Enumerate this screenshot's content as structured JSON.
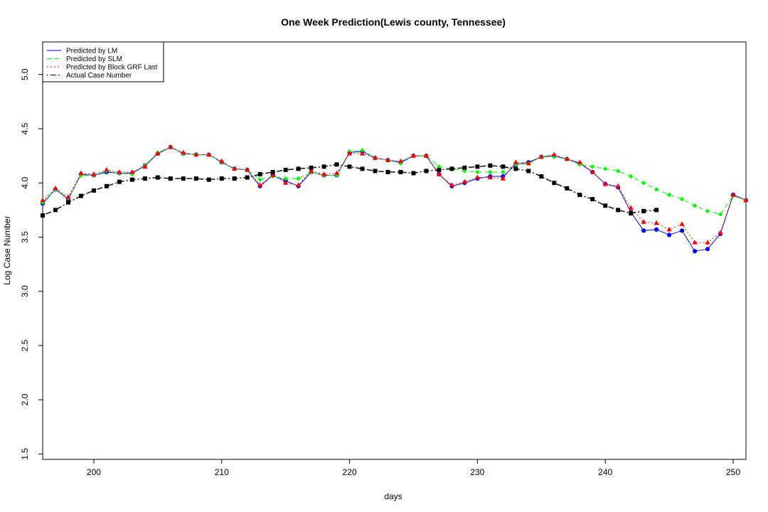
{
  "chart_data": {
    "type": "line",
    "title": "One Week Prediction(Lewis county, Tennessee)",
    "xlabel": "days",
    "ylabel": "Log Case Number",
    "xlim": [
      196,
      251
    ],
    "ylim": [
      1.45,
      5.3
    ],
    "x_ticks": [
      200,
      210,
      220,
      230,
      240,
      250
    ],
    "y_ticks": [
      1.5,
      2.0,
      2.5,
      3.0,
      3.5,
      4.0,
      4.5,
      5.0
    ],
    "x_tick_labels": [
      "200",
      "210",
      "220",
      "230",
      "240",
      "250"
    ],
    "y_tick_labels": [
      "1.5",
      "2.0",
      "2.5",
      "3.0",
      "3.5",
      "4.0",
      "4.5",
      "5.0"
    ],
    "grid": false,
    "legend_position": "top-left",
    "legend": [
      "Predicted by LM",
      "Predicted by SLM",
      "Predicted by Block GRF Last",
      "Actual Case Number"
    ],
    "series": [
      {
        "name": "Predicted by LM",
        "color": "#0000ff",
        "dash": "solid",
        "marker": "circle",
        "x": [
          196,
          197,
          198,
          199,
          200,
          201,
          202,
          203,
          204,
          205,
          206,
          207,
          208,
          209,
          210,
          211,
          212,
          213,
          214,
          215,
          216,
          217,
          218,
          219,
          220,
          221,
          222,
          223,
          224,
          225,
          226,
          227,
          228,
          229,
          230,
          231,
          232,
          233,
          234,
          235,
          236,
          237,
          238,
          239,
          240,
          241,
          242,
          243,
          244,
          245,
          246,
          247,
          248,
          249,
          250,
          251
        ],
        "values": [
          3.81,
          3.94,
          3.85,
          4.08,
          4.07,
          4.1,
          4.09,
          4.09,
          4.16,
          4.27,
          4.33,
          4.27,
          4.26,
          4.26,
          4.19,
          4.13,
          4.12,
          3.97,
          4.07,
          4.02,
          3.97,
          4.1,
          4.07,
          4.07,
          4.28,
          4.29,
          4.23,
          4.21,
          4.19,
          4.25,
          4.25,
          4.08,
          3.97,
          4.0,
          4.04,
          4.06,
          4.06,
          4.17,
          4.19,
          4.24,
          4.25,
          4.22,
          4.18,
          4.1,
          3.99,
          3.96,
          3.73,
          3.56,
          3.57,
          3.52,
          3.56,
          3.37,
          3.39,
          3.53,
          3.89,
          3.84
        ]
      },
      {
        "name": "Predicted by SLM",
        "color": "#00ff00",
        "dash": "dashed",
        "marker": "diamond",
        "x": [
          196,
          197,
          198,
          199,
          200,
          201,
          202,
          203,
          204,
          205,
          206,
          207,
          208,
          209,
          210,
          211,
          212,
          213,
          214,
          215,
          216,
          217,
          218,
          219,
          220,
          221,
          222,
          223,
          224,
          225,
          226,
          227,
          228,
          229,
          230,
          231,
          232,
          233,
          234,
          235,
          236,
          237,
          238,
          239,
          240,
          241,
          242,
          243,
          244,
          245,
          246,
          247,
          248,
          249,
          250,
          251
        ],
        "values": [
          3.82,
          3.94,
          3.86,
          4.07,
          4.07,
          4.11,
          4.09,
          4.08,
          4.16,
          4.28,
          4.33,
          4.27,
          4.26,
          4.26,
          4.19,
          4.13,
          4.12,
          4.03,
          4.06,
          4.04,
          4.04,
          4.1,
          4.07,
          4.07,
          4.29,
          4.3,
          4.23,
          4.21,
          4.18,
          4.25,
          4.25,
          4.15,
          4.13,
          4.11,
          4.1,
          4.1,
          4.1,
          4.17,
          4.18,
          4.24,
          4.24,
          4.22,
          4.17,
          4.15,
          4.13,
          4.11,
          4.06,
          4.0,
          3.94,
          3.89,
          3.85,
          3.79,
          3.74,
          3.71,
          3.88,
          3.84
        ]
      },
      {
        "name": "Predicted by Block GRF Last",
        "color": "#ff0000",
        "dash": "dotted",
        "marker": "triangle",
        "x": [
          196,
          197,
          198,
          199,
          200,
          201,
          202,
          203,
          204,
          205,
          206,
          207,
          208,
          209,
          210,
          211,
          212,
          213,
          214,
          215,
          216,
          217,
          218,
          219,
          220,
          221,
          222,
          223,
          224,
          225,
          226,
          227,
          228,
          229,
          230,
          231,
          232,
          233,
          234,
          235,
          236,
          237,
          238,
          239,
          240,
          241,
          242,
          243,
          244,
          245,
          246,
          247,
          248,
          249,
          250,
          251
        ],
        "values": [
          3.84,
          3.95,
          3.87,
          4.09,
          4.08,
          4.12,
          4.1,
          4.1,
          4.15,
          4.27,
          4.33,
          4.28,
          4.26,
          4.26,
          4.2,
          4.13,
          4.12,
          3.98,
          4.07,
          4.0,
          3.98,
          4.11,
          4.08,
          4.09,
          4.27,
          4.27,
          4.23,
          4.21,
          4.2,
          4.25,
          4.25,
          4.08,
          3.98,
          4.01,
          4.05,
          4.05,
          4.04,
          4.19,
          4.18,
          4.24,
          4.26,
          4.22,
          4.19,
          4.1,
          3.99,
          3.97,
          3.77,
          3.64,
          3.63,
          3.57,
          3.62,
          3.45,
          3.45,
          3.54,
          3.89,
          3.84
        ]
      },
      {
        "name": "Actual Case Number",
        "color": "#000000",
        "dash": "dotdash",
        "marker": "square",
        "x": [
          196,
          197,
          198,
          199,
          200,
          201,
          202,
          203,
          204,
          205,
          206,
          207,
          208,
          209,
          210,
          211,
          212,
          213,
          214,
          215,
          216,
          217,
          218,
          219,
          220,
          221,
          222,
          223,
          224,
          225,
          226,
          227,
          228,
          229,
          230,
          231,
          232,
          233,
          234,
          235,
          236,
          237,
          238,
          239,
          240,
          241,
          242,
          243,
          244
        ],
        "values": [
          3.7,
          3.75,
          3.82,
          3.88,
          3.93,
          3.97,
          4.01,
          4.03,
          4.04,
          4.05,
          4.04,
          4.04,
          4.04,
          4.03,
          4.04,
          4.04,
          4.05,
          4.08,
          4.1,
          4.12,
          4.13,
          4.14,
          4.15,
          4.17,
          4.15,
          4.13,
          4.11,
          4.1,
          4.1,
          4.09,
          4.11,
          4.12,
          4.13,
          4.14,
          4.15,
          4.16,
          4.15,
          4.13,
          4.11,
          4.06,
          4.0,
          3.95,
          3.89,
          3.85,
          3.79,
          3.75,
          3.72,
          3.74,
          3.75
        ]
      }
    ]
  }
}
